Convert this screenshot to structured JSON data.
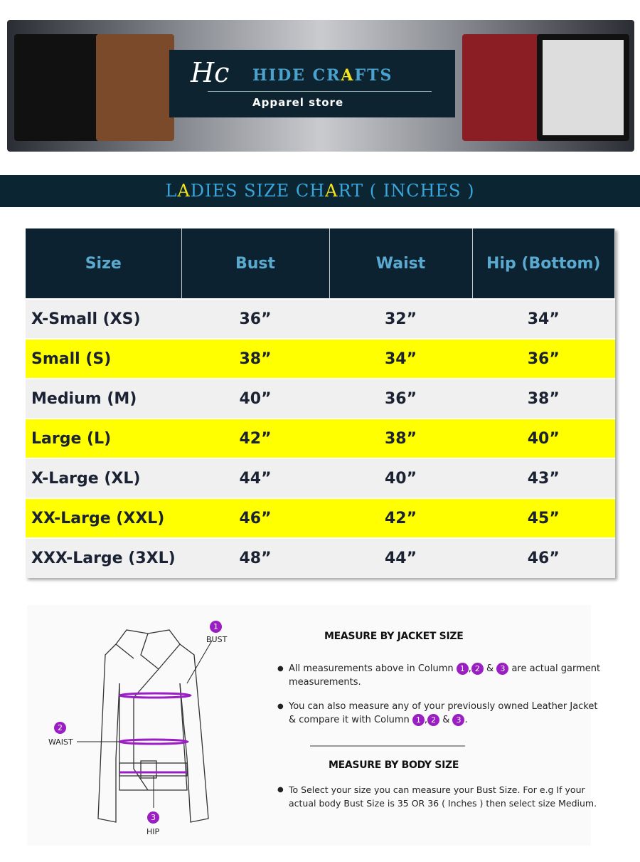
{
  "brand": {
    "monogram": "Hc",
    "name_pre": "HIDE CR",
    "name_hl": "A",
    "name_post": "FTS",
    "tagline": "Apparel store"
  },
  "title": {
    "l1": "L",
    "hl1": "A",
    "p2": "DIES SIZE CH",
    "hl2": "A",
    "p3": "RT ( INCHES )"
  },
  "table": {
    "headers": [
      "Size",
      "Bust",
      "Waist",
      "Hip (Bottom)"
    ],
    "rows": [
      [
        "X-Small (XS)",
        "36”",
        "32”",
        "34”"
      ],
      [
        "Small (S)",
        "38”",
        "34”",
        "36”"
      ],
      [
        "Medium (M)",
        "40”",
        "36”",
        "38”"
      ],
      [
        "Large (L)",
        "42”",
        "38”",
        "40”"
      ],
      [
        "X-Large (XL)",
        "44”",
        "40”",
        "43”"
      ],
      [
        "XX-Large (XXL)",
        "46”",
        "42”",
        "45”"
      ],
      [
        "XXX-Large (3XL)",
        "48”",
        "44”",
        "46”"
      ]
    ]
  },
  "diagram": {
    "bust": "BUST",
    "waist": "WAIST",
    "hip": "HIP",
    "n1": "1",
    "n2": "2",
    "n3": "3"
  },
  "info": {
    "jacket_heading": "MEASURE BY JACKET SIZE",
    "b1_a": "All measurements above in Column",
    "b1_b": "are actual garment measurements.",
    "b2_a": "You can also measure any of your previously owned Leather Jacket & compare it with Column",
    "body_heading": "MEASURE BY BODY SIZE",
    "b3": "To Select your size you can measure your Bust Size. For e.g If your actual body Bust Size is  35 OR 36 ( Inches ) then select size Medium."
  },
  "colors": {
    "navy": "#0b2532",
    "blue": "#3aa6dc",
    "yellow": "#ffff00",
    "purple": "#9b1ec4"
  }
}
